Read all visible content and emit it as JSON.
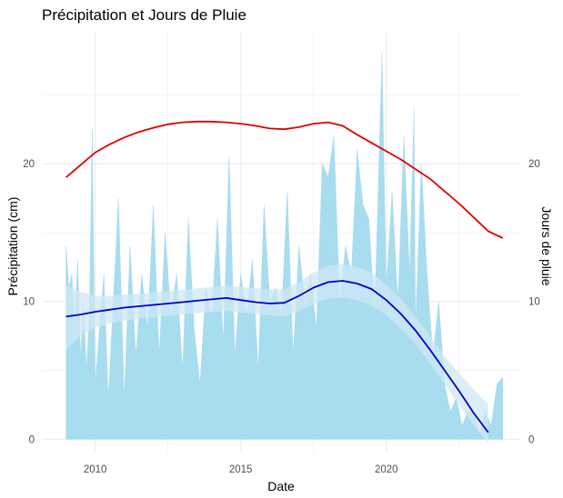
{
  "chart_data": {
    "type": "area",
    "title": "Précipitation et Jours de Pluie",
    "xlabel": "Date",
    "ylabel": "Précipitation (cm)",
    "y2label": "Jours de pluie",
    "x_ticks": [
      "2010",
      "2015",
      "2020"
    ],
    "y_ticks": [
      "0",
      "10",
      "20"
    ],
    "y2_ticks": [
      "0",
      "10",
      "20"
    ],
    "xlim": [
      2008.2,
      2024.6
    ],
    "ylim": [
      -0.9,
      29.5
    ],
    "grid": true,
    "legend": "none",
    "colors": {
      "precipitation": "#a8dcef",
      "precip_trend": "#0000cd",
      "precip_band": "#cfe8f6",
      "rain_days_trend": "#e00000",
      "grid": "#ebebeb"
    },
    "series": [
      {
        "type": "area",
        "x": [
          2009.0,
          2009.1,
          2009.2,
          2009.3,
          2009.4,
          2009.5,
          2009.6,
          2009.7,
          2009.8,
          2009.9,
          2010.0,
          2010.15,
          2010.3,
          2010.45,
          2010.6,
          2010.8,
          2011.0,
          2011.2,
          2011.4,
          2011.6,
          2011.8,
          2012.0,
          2012.2,
          2012.4,
          2012.6,
          2012.8,
          2013.0,
          2013.2,
          2013.4,
          2013.6,
          2013.8,
          2014.0,
          2014.2,
          2014.4,
          2014.6,
          2014.8,
          2015.0,
          2015.2,
          2015.4,
          2015.6,
          2015.8,
          2016.0,
          2016.2,
          2016.4,
          2016.6,
          2016.8,
          2017.0,
          2017.2,
          2017.4,
          2017.6,
          2017.8,
          2018.0,
          2018.2,
          2018.4,
          2018.6,
          2018.8,
          2019.0,
          2019.2,
          2019.4,
          2019.6,
          2019.8,
          2019.85,
          2020.0,
          2020.2,
          2020.4,
          2020.6,
          2020.8,
          2020.95,
          2021.0,
          2021.2,
          2021.4,
          2021.6,
          2021.8,
          2022.0,
          2022.2,
          2022.4,
          2022.6,
          2022.8,
          2023.0,
          2023.2,
          2023.4,
          2023.6,
          2023.8,
          2024.0
        ],
        "values": [
          14,
          11,
          12,
          8,
          13,
          6,
          10,
          5,
          9,
          22.5,
          4,
          8,
          12,
          3,
          9,
          17.5,
          3,
          14,
          6,
          12,
          8,
          17,
          6,
          15,
          9,
          12,
          5,
          16,
          8,
          4,
          11,
          9,
          16,
          7,
          20.5,
          6,
          12,
          9,
          13,
          5,
          17,
          10,
          11,
          9,
          18,
          6,
          14,
          10,
          12,
          8,
          20,
          19,
          22,
          10,
          14,
          12,
          21,
          17,
          16,
          9,
          24,
          28,
          11,
          18,
          10,
          22,
          12,
          24,
          8,
          20,
          12,
          6,
          10,
          4,
          2,
          3,
          1,
          2,
          2,
          0.5,
          2,
          1,
          4,
          4.5
        ]
      },
      {
        "name": "",
        "type": "line",
        "x": [
          2009.0,
          2009.5,
          2010.0,
          2010.5,
          2011.0,
          2011.5,
          2012.0,
          2012.5,
          2013.0,
          2013.5,
          2014.0,
          2014.5,
          2015.0,
          2015.5,
          2016.0,
          2016.5,
          2017.0,
          2017.5,
          2018.0,
          2018.5,
          2019.0,
          2019.5,
          2020.0,
          2020.5,
          2021.0,
          2021.5,
          2022.0,
          2022.5,
          2023.0,
          2023.5
        ],
        "values": [
          8.9,
          9.05,
          9.25,
          9.4,
          9.55,
          9.65,
          9.75,
          9.85,
          9.95,
          10.05,
          10.15,
          10.25,
          10.1,
          9.95,
          9.85,
          9.9,
          10.4,
          11.0,
          11.4,
          11.5,
          11.3,
          10.9,
          10.1,
          9.1,
          7.9,
          6.5,
          5.0,
          3.5,
          1.9,
          0.5
        ],
        "band_lower": [
          6.5,
          7.5,
          8.1,
          8.4,
          8.6,
          8.75,
          8.85,
          8.95,
          9.05,
          9.15,
          9.25,
          9.3,
          9.2,
          9.1,
          9.0,
          8.9,
          9.3,
          9.8,
          10.2,
          10.3,
          10.1,
          9.7,
          9.0,
          8.0,
          6.9,
          5.5,
          4.0,
          2.5,
          1.0,
          -0.3
        ],
        "band_upper": [
          11.2,
          10.7,
          10.4,
          10.4,
          10.5,
          10.55,
          10.65,
          10.75,
          10.85,
          10.95,
          11.05,
          11.15,
          11.05,
          10.95,
          10.85,
          10.9,
          11.4,
          12.1,
          12.6,
          12.7,
          12.5,
          12.1,
          11.2,
          10.2,
          8.9,
          7.5,
          6.0,
          4.8,
          3.6,
          2.5
        ]
      },
      {
        "name": "",
        "type": "line",
        "axis": "right",
        "x": [
          2009.0,
          2009.5,
          2010.0,
          2010.5,
          2011.0,
          2011.5,
          2012.0,
          2012.5,
          2013.0,
          2013.5,
          2014.0,
          2014.5,
          2015.0,
          2015.5,
          2016.0,
          2016.5,
          2017.0,
          2017.5,
          2018.0,
          2018.5,
          2019.0,
          2019.5,
          2020.0,
          2020.5,
          2021.0,
          2021.5,
          2022.0,
          2022.5,
          2023.0,
          2023.5,
          2024.0
        ],
        "values": [
          19.0,
          19.9,
          20.8,
          21.4,
          21.9,
          22.3,
          22.6,
          22.85,
          23.0,
          23.05,
          23.05,
          23.0,
          22.9,
          22.75,
          22.55,
          22.5,
          22.65,
          22.9,
          23.0,
          22.75,
          22.1,
          21.5,
          20.9,
          20.3,
          19.6,
          18.9,
          18.0,
          17.1,
          16.1,
          15.1,
          14.6
        ]
      }
    ]
  }
}
